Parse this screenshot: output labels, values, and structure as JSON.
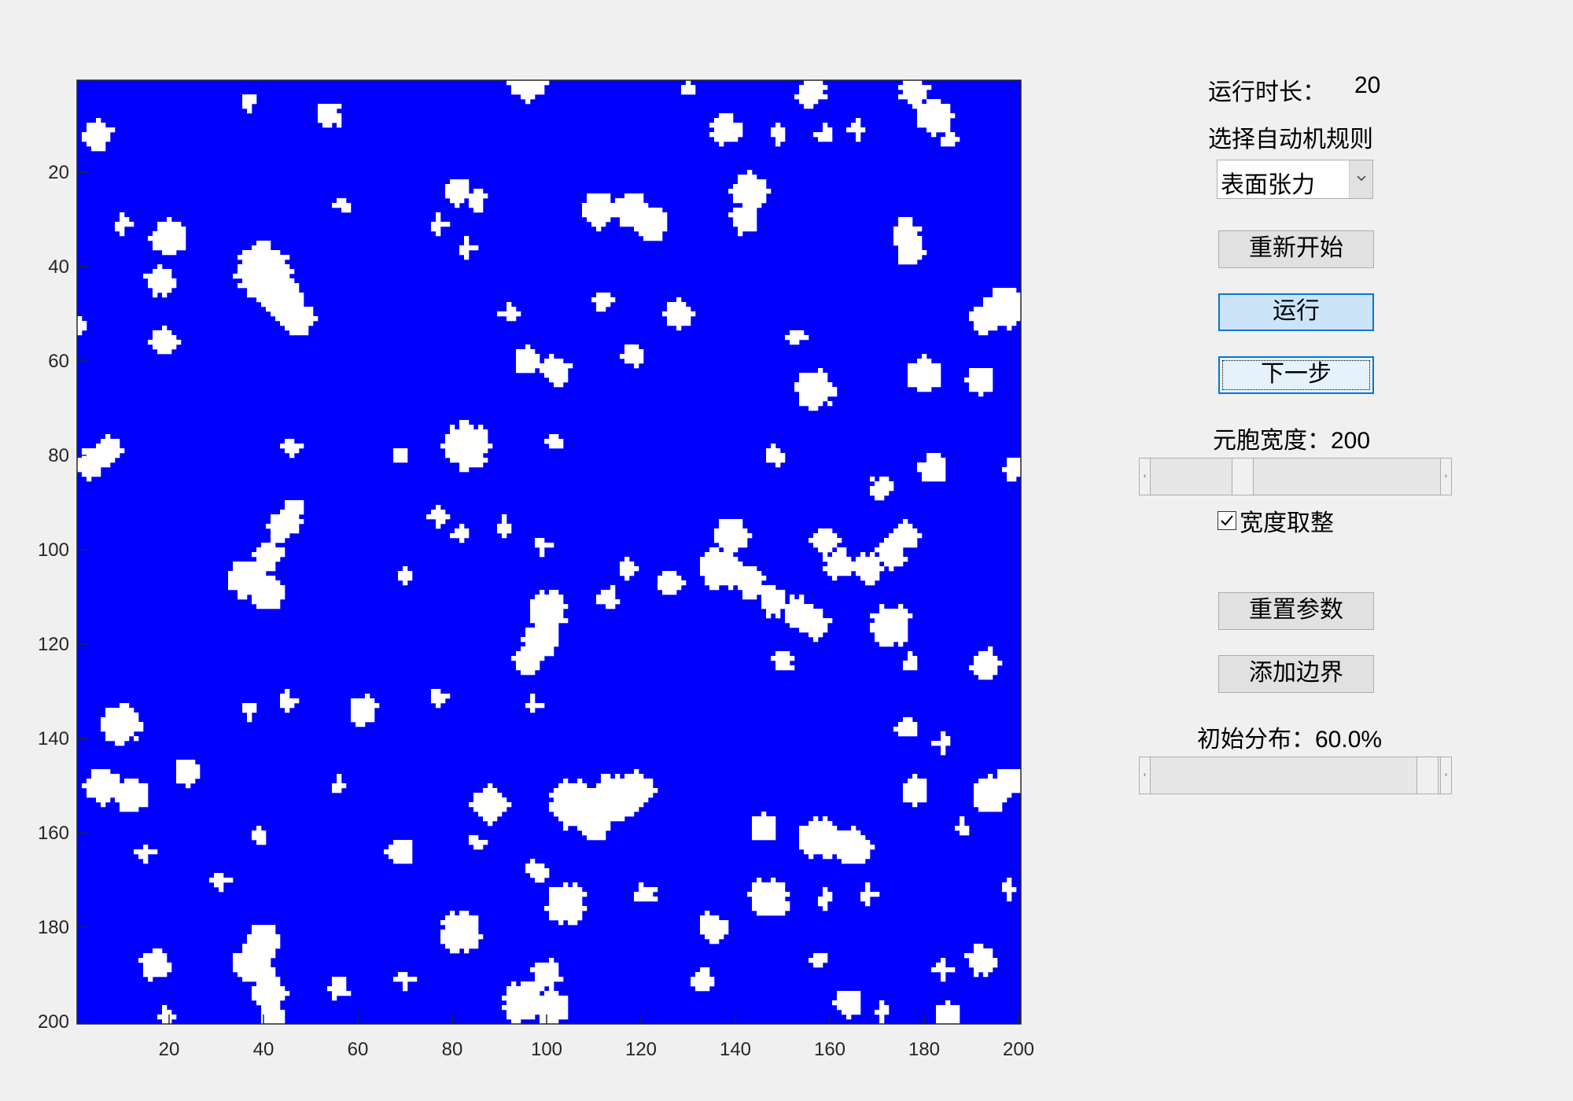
{
  "runtime": {
    "label": "运行时长：",
    "value": "20"
  },
  "rule": {
    "label": "选择自动机规则",
    "selected": "表面张力"
  },
  "buttons": {
    "restart": "重新开始",
    "run": "运行",
    "next_step": "下一步",
    "reset_params": "重置参数",
    "add_boundary": "添加边界"
  },
  "cell_width": {
    "label": "元胞宽度：",
    "value": "200",
    "slider_value": 200
  },
  "round_width": {
    "label": "宽度取整",
    "checked": true
  },
  "initial_distribution": {
    "label": "初始分布：",
    "value": "60.0%",
    "slider_value": 0.6
  },
  "colors": {
    "state_0": "#0000ff",
    "state_1": "#ffffff",
    "background": "#f0f0f0"
  },
  "chart_data": {
    "type": "heatmap",
    "grid_size": [
      200,
      200
    ],
    "xlim": [
      1,
      200
    ],
    "ylim": [
      1,
      200
    ],
    "y_direction": "reverse",
    "x_ticks": [
      "20",
      "40",
      "60",
      "80",
      "100",
      "120",
      "140",
      "160",
      "180",
      "200"
    ],
    "y_ticks": [
      "20",
      "40",
      "60",
      "80",
      "100",
      "120",
      "140",
      "160",
      "180",
      "200"
    ],
    "values": "binary: blue background (0) with scattered white clusters (1)",
    "clusters": [
      {
        "x": 5,
        "y": 12,
        "r": 2.5
      },
      {
        "x": 10,
        "y": 31,
        "r": 1
      },
      {
        "x": 20,
        "y": 34,
        "r": 3
      },
      {
        "x": 18,
        "y": 43,
        "r": 2.5
      },
      {
        "x": 19,
        "y": 56,
        "r": 2
      },
      {
        "x": 40,
        "y": 41,
        "r": 5
      },
      {
        "x": 44,
        "y": 47,
        "r": 3.5
      },
      {
        "x": 47,
        "y": 51,
        "r": 3
      },
      {
        "x": 54,
        "y": 8,
        "r": 1.8
      },
      {
        "x": 37,
        "y": 5,
        "r": 1
      },
      {
        "x": 57,
        "y": 27,
        "r": 1
      },
      {
        "x": 77,
        "y": 31,
        "r": 1
      },
      {
        "x": 81,
        "y": 24,
        "r": 2
      },
      {
        "x": 85,
        "y": 26,
        "r": 1.5
      },
      {
        "x": 83,
        "y": 36,
        "r": 1
      },
      {
        "x": 96,
        "y": 1,
        "r": 3
      },
      {
        "x": 111,
        "y": 28,
        "r": 3
      },
      {
        "x": 118,
        "y": 28,
        "r": 3
      },
      {
        "x": 122,
        "y": 31,
        "r": 3
      },
      {
        "x": 130,
        "y": 2,
        "r": 1
      },
      {
        "x": 138,
        "y": 11,
        "r": 2.5
      },
      {
        "x": 143,
        "y": 24,
        "r": 3
      },
      {
        "x": 142,
        "y": 30,
        "r": 2.5
      },
      {
        "x": 149,
        "y": 12,
        "r": 1
      },
      {
        "x": 156,
        "y": 3,
        "r": 2.5
      },
      {
        "x": 159,
        "y": 12,
        "r": 1
      },
      {
        "x": 166,
        "y": 11,
        "r": 1
      },
      {
        "x": 176,
        "y": 33,
        "r": 2.5
      },
      {
        "x": 177,
        "y": 37,
        "r": 2
      },
      {
        "x": 178,
        "y": 3,
        "r": 2.5
      },
      {
        "x": 182,
        "y": 8,
        "r": 3
      },
      {
        "x": 185,
        "y": 13,
        "r": 1
      },
      {
        "x": 197,
        "y": 49,
        "r": 3.5
      },
      {
        "x": 193,
        "y": 51,
        "r": 2.5
      },
      {
        "x": 1,
        "y": 53,
        "r": 1
      },
      {
        "x": 92,
        "y": 50,
        "r": 1
      },
      {
        "x": 112,
        "y": 47,
        "r": 1.5
      },
      {
        "x": 128,
        "y": 50,
        "r": 2
      },
      {
        "x": 96,
        "y": 60,
        "r": 2
      },
      {
        "x": 102,
        "y": 62,
        "r": 2.5
      },
      {
        "x": 118,
        "y": 59,
        "r": 1.5
      },
      {
        "x": 153,
        "y": 55,
        "r": 1
      },
      {
        "x": 157,
        "y": 66,
        "r": 3.2
      },
      {
        "x": 180,
        "y": 63,
        "r": 3
      },
      {
        "x": 192,
        "y": 64,
        "r": 2
      },
      {
        "x": 3,
        "y": 82,
        "r": 2.5
      },
      {
        "x": 7,
        "y": 79,
        "r": 2
      },
      {
        "x": 46,
        "y": 78,
        "r": 1
      },
      {
        "x": 69,
        "y": 80,
        "r": 1
      },
      {
        "x": 83,
        "y": 78,
        "r": 4
      },
      {
        "x": 102,
        "y": 77,
        "r": 1
      },
      {
        "x": 148,
        "y": 80,
        "r": 1.5
      },
      {
        "x": 171,
        "y": 87,
        "r": 1.8
      },
      {
        "x": 182,
        "y": 83,
        "r": 2.5
      },
      {
        "x": 199,
        "y": 83,
        "r": 1.5
      },
      {
        "x": 44,
        "y": 95,
        "r": 2.5
      },
      {
        "x": 41,
        "y": 101,
        "r": 2.5
      },
      {
        "x": 37,
        "y": 106,
        "r": 3.5
      },
      {
        "x": 41,
        "y": 109,
        "r": 3
      },
      {
        "x": 46,
        "y": 92,
        "r": 1.8
      },
      {
        "x": 77,
        "y": 93,
        "r": 1
      },
      {
        "x": 82,
        "y": 97,
        "r": 1
      },
      {
        "x": 91,
        "y": 95,
        "r": 1
      },
      {
        "x": 99,
        "y": 99,
        "r": 1
      },
      {
        "x": 70,
        "y": 106,
        "r": 1
      },
      {
        "x": 117,
        "y": 104,
        "r": 1
      },
      {
        "x": 113,
        "y": 110,
        "r": 1.5
      },
      {
        "x": 126,
        "y": 107,
        "r": 2
      },
      {
        "x": 139,
        "y": 97,
        "r": 3
      },
      {
        "x": 137,
        "y": 104,
        "r": 3.5
      },
      {
        "x": 143,
        "y": 107,
        "r": 2.5
      },
      {
        "x": 148,
        "y": 111,
        "r": 2.5
      },
      {
        "x": 153,
        "y": 113,
        "r": 2.5
      },
      {
        "x": 157,
        "y": 116,
        "r": 2.5
      },
      {
        "x": 159,
        "y": 98,
        "r": 2
      },
      {
        "x": 162,
        "y": 103,
        "r": 2.5
      },
      {
        "x": 168,
        "y": 104,
        "r": 2.5
      },
      {
        "x": 173,
        "y": 101,
        "r": 2.5
      },
      {
        "x": 176,
        "y": 97,
        "r": 2
      },
      {
        "x": 173,
        "y": 116,
        "r": 3.5
      },
      {
        "x": 100,
        "y": 113,
        "r": 3.5
      },
      {
        "x": 99,
        "y": 119,
        "r": 3
      },
      {
        "x": 96,
        "y": 124,
        "r": 2.5
      },
      {
        "x": 150,
        "y": 124,
        "r": 1.5
      },
      {
        "x": 177,
        "y": 124,
        "r": 1
      },
      {
        "x": 193,
        "y": 124,
        "r": 2.5
      },
      {
        "x": 10,
        "y": 137,
        "r": 3.2
      },
      {
        "x": 6,
        "y": 150,
        "r": 3
      },
      {
        "x": 12,
        "y": 152,
        "r": 3
      },
      {
        "x": 24,
        "y": 147,
        "r": 2
      },
      {
        "x": 37,
        "y": 134,
        "r": 1
      },
      {
        "x": 45,
        "y": 132,
        "r": 1
      },
      {
        "x": 61,
        "y": 134,
        "r": 2.5
      },
      {
        "x": 77,
        "y": 131,
        "r": 1
      },
      {
        "x": 97,
        "y": 133,
        "r": 1
      },
      {
        "x": 56,
        "y": 150,
        "r": 1
      },
      {
        "x": 88,
        "y": 154,
        "r": 3
      },
      {
        "x": 106,
        "y": 154,
        "r": 4.5
      },
      {
        "x": 114,
        "y": 153,
        "r": 4.5
      },
      {
        "x": 119,
        "y": 151,
        "r": 3
      },
      {
        "x": 110,
        "y": 158,
        "r": 3
      },
      {
        "x": 176,
        "y": 138,
        "r": 1.5
      },
      {
        "x": 184,
        "y": 141,
        "r": 1
      },
      {
        "x": 178,
        "y": 151,
        "r": 2
      },
      {
        "x": 194,
        "y": 152,
        "r": 3
      },
      {
        "x": 198,
        "y": 149,
        "r": 2
      },
      {
        "x": 146,
        "y": 159,
        "r": 2
      },
      {
        "x": 158,
        "y": 161,
        "r": 3.5
      },
      {
        "x": 165,
        "y": 163,
        "r": 3
      },
      {
        "x": 188,
        "y": 159,
        "r": 1
      },
      {
        "x": 15,
        "y": 164,
        "r": 1
      },
      {
        "x": 39,
        "y": 161,
        "r": 1
      },
      {
        "x": 69,
        "y": 164,
        "r": 2
      },
      {
        "x": 85,
        "y": 162,
        "r": 1
      },
      {
        "x": 98,
        "y": 168,
        "r": 1.5
      },
      {
        "x": 104,
        "y": 175,
        "r": 3.5
      },
      {
        "x": 31,
        "y": 170,
        "r": 1
      },
      {
        "x": 121,
        "y": 173,
        "r": 1.2
      },
      {
        "x": 147,
        "y": 174,
        "r": 3.5
      },
      {
        "x": 159,
        "y": 174,
        "r": 1
      },
      {
        "x": 168,
        "y": 173,
        "r": 1
      },
      {
        "x": 198,
        "y": 172,
        "r": 1
      },
      {
        "x": 82,
        "y": 181,
        "r": 3.5
      },
      {
        "x": 135,
        "y": 180,
        "r": 2.5
      },
      {
        "x": 17,
        "y": 188,
        "r": 2.5
      },
      {
        "x": 40,
        "y": 183,
        "r": 3
      },
      {
        "x": 38,
        "y": 188,
        "r": 3.5
      },
      {
        "x": 41,
        "y": 194,
        "r": 3
      },
      {
        "x": 42,
        "y": 199,
        "r": 2
      },
      {
        "x": 56,
        "y": 193,
        "r": 1.5
      },
      {
        "x": 70,
        "y": 191,
        "r": 1
      },
      {
        "x": 95,
        "y": 196,
        "r": 3.5
      },
      {
        "x": 101,
        "y": 197,
        "r": 3
      },
      {
        "x": 100,
        "y": 190,
        "r": 2.5
      },
      {
        "x": 133,
        "y": 191,
        "r": 1.8
      },
      {
        "x": 158,
        "y": 187,
        "r": 1
      },
      {
        "x": 164,
        "y": 196,
        "r": 2
      },
      {
        "x": 171,
        "y": 198,
        "r": 1
      },
      {
        "x": 184,
        "y": 189,
        "r": 1
      },
      {
        "x": 192,
        "y": 187,
        "r": 2.5
      },
      {
        "x": 185,
        "y": 199,
        "r": 2
      },
      {
        "x": 19,
        "y": 199,
        "r": 1
      }
    ]
  }
}
